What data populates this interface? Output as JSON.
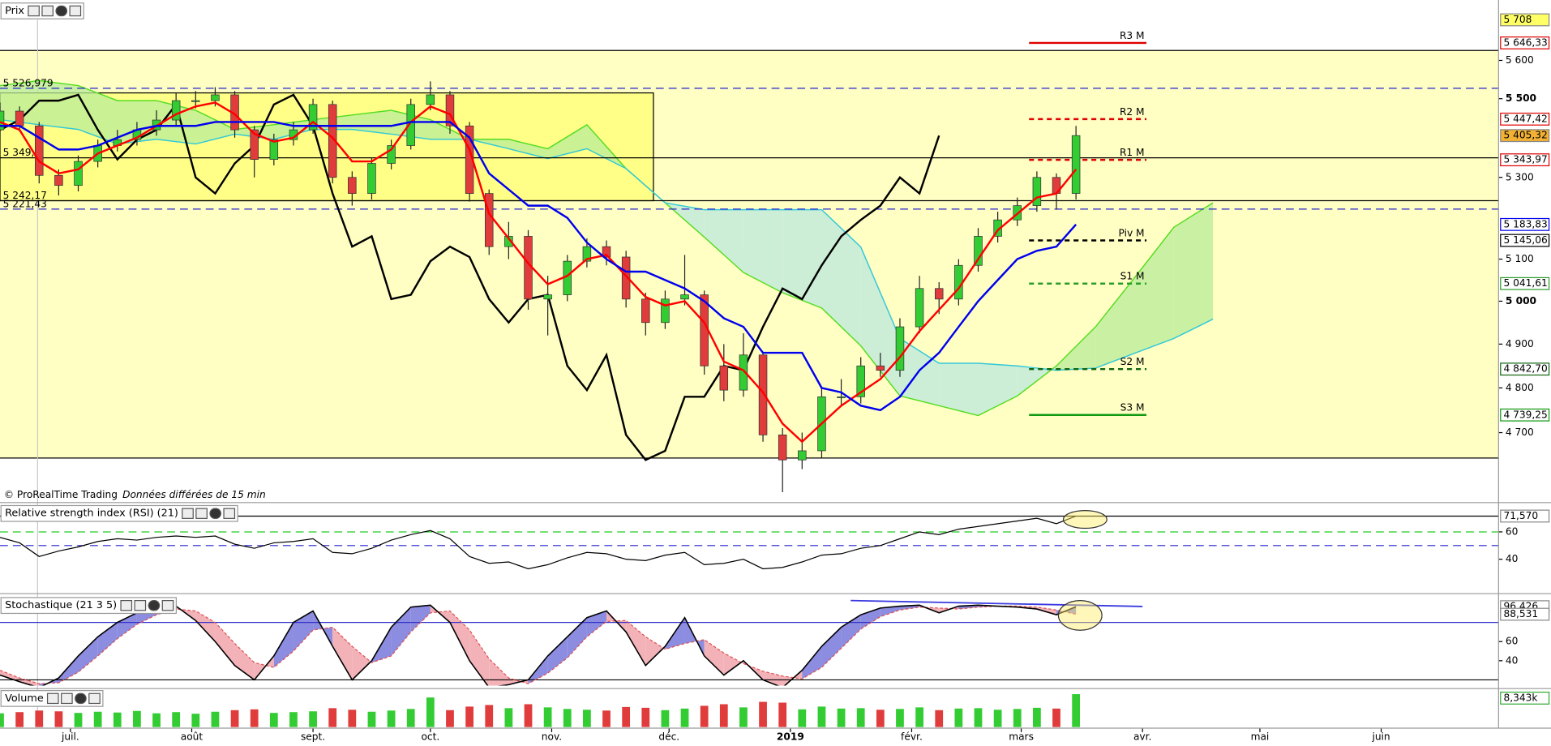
{
  "chart_data": [
    {
      "type": "candlestick",
      "title": "Prix",
      "credit": "© ProRealTime Trading",
      "note": "Données différées de 15 min",
      "x": [
        -18,
        -13,
        -8,
        -3,
        2,
        7,
        12,
        17,
        22,
        27,
        32,
        37,
        42,
        47,
        52,
        57,
        62,
        67,
        72,
        77,
        82,
        87,
        92,
        97,
        102,
        107,
        112,
        117,
        122,
        127,
        132,
        137,
        142,
        147,
        152,
        157,
        162,
        167,
        172,
        177,
        182,
        187,
        192,
        197,
        202,
        207,
        212,
        217,
        222,
        227,
        232,
        237,
        242,
        247,
        252,
        257
      ],
      "open": [
        5420,
        5468,
        5430,
        5305,
        5280,
        5340,
        5380,
        5395,
        5420,
        5445,
        5495,
        5495,
        5510,
        5420,
        5345,
        5395,
        5420,
        5485,
        5300,
        5260,
        5335,
        5380,
        5485,
        5510,
        5430,
        5260,
        5130,
        5155,
        5005,
        5015,
        5095,
        5130,
        5105,
        5005,
        4950,
        5005,
        5015,
        4850,
        4795,
        4875,
        4695,
        4640,
        4660,
        4780,
        4780,
        4850,
        4840,
        4940,
        5030,
        5005,
        5085,
        5155,
        5195,
        5230,
        5300,
        5260
      ],
      "high": [
        5490,
        5480,
        5440,
        5320,
        5355,
        5395,
        5420,
        5440,
        5470,
        5515,
        5520,
        5530,
        5520,
        5430,
        5410,
        5440,
        5500,
        5495,
        5315,
        5350,
        5395,
        5500,
        5545,
        5520,
        5440,
        5270,
        5190,
        5170,
        5060,
        5110,
        5150,
        5145,
        5120,
        5020,
        5025,
        5110,
        5025,
        4900,
        4925,
        4880,
        4710,
        4700,
        4800,
        4820,
        4870,
        4880,
        4960,
        5060,
        5045,
        5100,
        5175,
        5215,
        5250,
        5315,
        5310,
        5430
      ],
      "low": [
        5400,
        5415,
        5285,
        5255,
        5265,
        5325,
        5365,
        5380,
        5405,
        5430,
        5475,
        5480,
        5400,
        5300,
        5330,
        5380,
        5410,
        5285,
        5230,
        5245,
        5320,
        5370,
        5470,
        5410,
        5240,
        5110,
        5100,
        4980,
        4920,
        5000,
        5080,
        5085,
        4985,
        4920,
        4935,
        4990,
        4830,
        4770,
        4780,
        4680,
        4570,
        4620,
        4645,
        4760,
        4765,
        4825,
        4825,
        4925,
        4970,
        4990,
        5070,
        5140,
        5180,
        5215,
        5220,
        5245
      ],
      "close": [
        5468,
        5430,
        5305,
        5280,
        5340,
        5380,
        5395,
        5420,
        5445,
        5495,
        5495,
        5510,
        5420,
        5345,
        5395,
        5420,
        5485,
        5300,
        5260,
        5335,
        5380,
        5485,
        5510,
        5430,
        5260,
        5130,
        5155,
        5005,
        5015,
        5095,
        5130,
        5105,
        5005,
        4950,
        5005,
        5015,
        4850,
        4795,
        4875,
        4695,
        4640,
        4660,
        4780,
        4780,
        4850,
        4840,
        4940,
        5030,
        5005,
        5085,
        5155,
        5195,
        5230,
        5300,
        5260,
        5405.32
      ],
      "up_color": "#33cc33",
      "down_color": "#e03c3c",
      "lines": [
        {
          "color": "#ff0000",
          "values": [
            5440,
            5420,
            5340,
            5310,
            5320,
            5360,
            5380,
            5400,
            5430,
            5460,
            5480,
            5490,
            5460,
            5410,
            5390,
            5400,
            5440,
            5400,
            5340,
            5340,
            5370,
            5440,
            5480,
            5460,
            5370,
            5210,
            5150,
            5090,
            5040,
            5060,
            5100,
            5110,
            5060,
            5010,
            4990,
            5000,
            4950,
            4860,
            4840,
            4790,
            4720,
            4680,
            4720,
            4760,
            4790,
            4820,
            4870,
            4930,
            4980,
            5030,
            5100,
            5170,
            5210,
            5250,
            5260,
            5320
          ]
        },
        {
          "color": "#0000ee",
          "values": [
            5430,
            5430,
            5400,
            5370,
            5370,
            5380,
            5400,
            5420,
            5430,
            5430,
            5430,
            5440,
            5440,
            5440,
            5440,
            5430,
            5430,
            5430,
            5430,
            5430,
            5430,
            5440,
            5440,
            5440,
            5400,
            5310,
            5270,
            5230,
            5230,
            5200,
            5140,
            5100,
            5070,
            5070,
            5050,
            5030,
            5000,
            4960,
            4940,
            4880,
            4880,
            4880,
            4800,
            4790,
            4760,
            4750,
            4780,
            4840,
            4880,
            4940,
            5000,
            5050,
            5100,
            5120,
            5130,
            5183.83
          ]
        }
      ],
      "lagging": {
        "color": "#000000",
        "x": [
          -18,
          -13,
          -8,
          -3,
          2,
          7,
          12,
          17,
          22,
          27,
          32,
          37,
          42,
          47,
          52,
          57,
          62,
          67,
          72,
          77,
          82,
          87,
          92,
          97,
          102,
          107,
          112,
          117,
          122,
          127,
          132,
          137,
          142,
          147,
          152,
          157,
          162,
          167,
          172,
          177,
          182,
          187,
          192,
          197,
          202,
          207,
          212,
          217,
          222
        ],
        "values": [
          5420,
          5445,
          5495,
          5495,
          5510,
          5420,
          5345,
          5395,
          5420,
          5485,
          5300,
          5260,
          5335,
          5380,
          5485,
          5510,
          5430,
          5260,
          5130,
          5155,
          5005,
          5015,
          5095,
          5130,
          5105,
          5005,
          4950,
          5005,
          5015,
          4850,
          4795,
          4875,
          4695,
          4640,
          4660,
          4780,
          4780,
          4850,
          4840,
          4940,
          5030,
          5005,
          5085,
          5155,
          5195,
          5230,
          5300,
          5260,
          5405.32
        ]
      },
      "cloud": {
        "color_a": "#55dd22",
        "color_b": "#33c8d8",
        "x": [
          -18,
          -8,
          2,
          12,
          22,
          32,
          42,
          52,
          62,
          72,
          82,
          92,
          102,
          112,
          122,
          132,
          142,
          152,
          162,
          172,
          182,
          192,
          202,
          212,
          222,
          232,
          242,
          252,
          262,
          272,
          282,
          292
        ],
        "span_a": [
          5534,
          5547,
          5534,
          5495,
          5495,
          5470,
          5421,
          5433,
          5446,
          5458,
          5470,
          5446,
          5396,
          5396,
          5372,
          5433,
          5322,
          5237,
          5153,
          5068,
          5020,
          4984,
          4896,
          4782,
          4760,
          4738,
          4782,
          4850,
          4940,
          5056,
          5177,
          5237
        ],
        "span_b": [
          5446,
          5433,
          5421,
          5384,
          5396,
          5384,
          5409,
          5396,
          5421,
          5421,
          5409,
          5396,
          5396,
          5372,
          5347,
          5372,
          5322,
          5237,
          5220,
          5220,
          5220,
          5220,
          5129,
          4913,
          4856,
          4856,
          4850,
          4840,
          4845,
          4879,
          4913,
          4958
        ]
      },
      "zone": {
        "x": [
          -18,
          149
        ],
        "y": [
          5242.17,
          5515
        ]
      },
      "zone_levels": [
        {
          "value": 5526.979,
          "label": "5 526,979",
          "line": "dash"
        },
        {
          "value": 5349,
          "label": "5 349,",
          "line": "solid"
        },
        {
          "value": 5242.17,
          "label": "5 242,17",
          "line": "solid"
        },
        {
          "value": 5221.43,
          "label": "5 221,43",
          "line": "dash"
        }
      ],
      "pivot_x": [
        245,
        275
      ],
      "pivots": [
        {
          "name": "R3 M",
          "value": 5646.33,
          "value_label": "5 646,33",
          "color": "#e00000",
          "dash": false
        },
        {
          "name": "R2 M",
          "value": 5447.42,
          "value_label": "5 447,42",
          "color": "#e00000",
          "dash": true
        },
        {
          "name": "R1 M",
          "value": 5343.97,
          "value_label": "5 343,97",
          "color": "#e00000",
          "dash": true
        },
        {
          "name": "Piv M",
          "value": 5145.06,
          "value_label": "5 145,06",
          "color": "#000000",
          "dash": true
        },
        {
          "name": "S1 M",
          "value": 5041.61,
          "value_label": "5 041,61",
          "color": "#2a9d2a",
          "dash": true
        },
        {
          "name": "S2 M",
          "value": 4842.7,
          "value_label": "4 842,70",
          "color": "#116611",
          "dash": true
        },
        {
          "name": "S3 M",
          "value": 4739.25,
          "value_label": "4 739,25",
          "color": "#119911",
          "dash": false
        }
      ],
      "price_tags": [
        {
          "value": 5708,
          "label": "5 708",
          "bg": "#ffff66",
          "color": "#000000"
        },
        {
          "value": 5405.32,
          "label": "5 405,32",
          "bg": "#f2b134",
          "color": "#000000"
        },
        {
          "value": 5183.83,
          "label": "5 183,83",
          "bg": "#ffffff",
          "color": "#0000ee"
        }
      ],
      "log_scale": true,
      "ylim": [
        4552,
        5708
      ],
      "yticks": [
        {
          "value": 5600,
          "label": "5 600"
        },
        {
          "value": 5500,
          "label": "5 500"
        },
        {
          "value": 5300,
          "label": "5 300"
        },
        {
          "value": 5100,
          "label": "5 100"
        },
        {
          "value": 5000,
          "label": "5 000"
        },
        {
          "value": 4900,
          "label": "4 900"
        },
        {
          "value": 4800,
          "label": "4 800"
        },
        {
          "value": 4700,
          "label": "4 700"
        }
      ],
      "xlim": [
        -18,
        365
      ],
      "xticks": [
        {
          "value": 0,
          "label": "juil."
        },
        {
          "value": 31,
          "label": "août"
        },
        {
          "value": 62,
          "label": "sept."
        },
        {
          "value": 92,
          "label": "oct."
        },
        {
          "value": 123,
          "label": "nov."
        },
        {
          "value": 153,
          "label": "déc."
        },
        {
          "value": 184,
          "label": "2019"
        },
        {
          "value": 215,
          "label": "févr."
        },
        {
          "value": 243,
          "label": "mars"
        },
        {
          "value": 274,
          "label": "avr."
        },
        {
          "value": 304,
          "label": "mai"
        },
        {
          "value": 335,
          "label": "juin"
        }
      ]
    },
    {
      "type": "line",
      "title": "Relative strength index (RSI) (21)",
      "color": "#000000",
      "values": [
        56,
        52,
        42,
        46,
        49,
        53,
        55,
        54,
        56,
        57,
        56,
        57,
        51,
        48,
        52,
        53,
        55,
        45,
        44,
        48,
        54,
        58,
        61,
        55,
        42,
        37,
        38,
        33,
        36,
        41,
        45,
        44,
        40,
        39,
        43,
        45,
        36,
        37,
        40,
        33,
        34,
        38,
        43,
        44,
        48,
        50,
        55,
        60,
        58,
        62,
        64,
        66,
        68,
        70,
        66,
        71.57
      ],
      "hlines": [
        {
          "value": 60,
          "color": "#22cc22"
        },
        {
          "value": 50,
          "color": "#2222cc"
        }
      ],
      "tag": {
        "value": 71.57,
        "label": "71,570"
      },
      "ylim": [
        17,
        80
      ],
      "yticks": [
        60,
        40
      ]
    },
    {
      "type": "stochastic",
      "title": "Stochastique (21 3 5)",
      "k": [
        25,
        18,
        12,
        22,
        45,
        65,
        80,
        90,
        96,
        97,
        82,
        60,
        35,
        20,
        45,
        80,
        92,
        55,
        20,
        40,
        75,
        96,
        98,
        80,
        40,
        12,
        15,
        20,
        45,
        65,
        85,
        92,
        70,
        35,
        55,
        85,
        45,
        25,
        40,
        20,
        12,
        30,
        55,
        75,
        88,
        95,
        97,
        98,
        90,
        97,
        98,
        97,
        96,
        94,
        88,
        96.426
      ],
      "d": [
        30,
        22,
        16,
        17,
        28,
        45,
        63,
        78,
        88,
        94,
        92,
        80,
        58,
        38,
        33,
        50,
        72,
        75,
        55,
        38,
        45,
        70,
        90,
        92,
        72,
        42,
        22,
        16,
        27,
        43,
        65,
        81,
        82,
        65,
        52,
        58,
        62,
        48,
        37,
        29,
        24,
        21,
        33,
        53,
        73,
        86,
        93,
        96,
        95,
        94,
        96,
        97,
        97,
        96,
        93,
        88.531
      ],
      "k_color": "#000000",
      "d_color": "#e05050",
      "up_fill": "#8c8ce0",
      "down_fill": "#f2b2b8",
      "hlines": [
        80,
        20
      ],
      "tags": [
        {
          "value": 96.426,
          "label": "96,426",
          "color": "#000000"
        },
        {
          "value": 88.531,
          "label": "88,531",
          "color": "#e00000"
        }
      ],
      "ylim": [
        14,
        107
      ],
      "yticks": [
        60,
        40
      ]
    },
    {
      "type": "volume",
      "title": "Volume",
      "values": [
        3500,
        3800,
        4200,
        4000,
        3600,
        3900,
        3700,
        4100,
        3500,
        3800,
        3400,
        3900,
        4300,
        4500,
        3600,
        3800,
        4000,
        4800,
        4400,
        3900,
        4200,
        4600,
        7500,
        4300,
        5200,
        5600,
        4800,
        5800,
        5000,
        4600,
        4400,
        4200,
        5100,
        4900,
        4300,
        4700,
        5400,
        5800,
        5000,
        6400,
        6200,
        4500,
        5200,
        4700,
        4800,
        4400,
        4600,
        5000,
        4300,
        4700,
        4800,
        4400,
        4600,
        4900,
        4700,
        8343
      ],
      "tag": {
        "value": 8343,
        "label": "8,343k"
      },
      "ylim": [
        0,
        9000
      ]
    }
  ]
}
